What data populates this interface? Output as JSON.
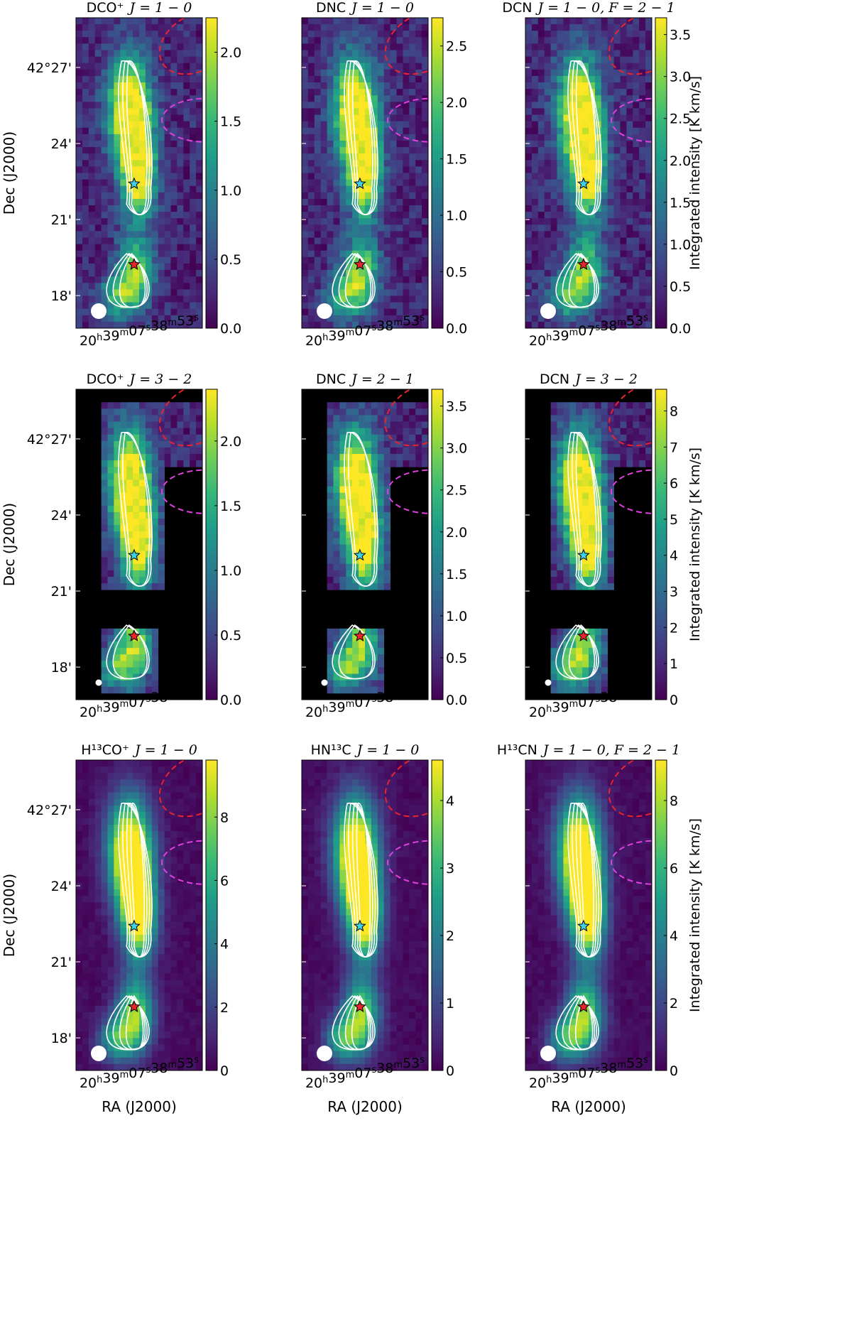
{
  "chart_data": [
    {
      "type": "heatmap",
      "title": "DCO⁺ J=1−0",
      "title_species": "DCO⁺",
      "title_transition": "J = 1 − 0",
      "colorbar_ticks": [
        "0.0",
        "0.5",
        "1.0",
        "1.5",
        "2.0"
      ],
      "colorbar_range": [
        0.0,
        2.25
      ],
      "colorbar_label": "",
      "peak_intensity": 2.2,
      "data_coverage": "full",
      "contours": 3
    },
    {
      "type": "heatmap",
      "title": "DNC J=1−0",
      "title_species": "DNC",
      "title_transition": "J = 1 − 0",
      "colorbar_ticks": [
        "0.0",
        "0.5",
        "1.0",
        "1.5",
        "2.0",
        "2.5"
      ],
      "colorbar_range": [
        0.0,
        2.75
      ],
      "colorbar_label": "",
      "peak_intensity": 2.7,
      "data_coverage": "full",
      "contours": 3
    },
    {
      "type": "heatmap",
      "title": "DCN J=1−0, F=2−1",
      "title_species": "DCN",
      "title_transition": "J = 1 − 0, F = 2 − 1",
      "colorbar_ticks": [
        "0.0",
        "0.5",
        "1.0",
        "1.5",
        "2.0",
        "2.5",
        "3.0",
        "3.5"
      ],
      "colorbar_range": [
        0.0,
        3.7
      ],
      "colorbar_label": "Integrated intensity [K km/s]",
      "peak_intensity": 3.6,
      "data_coverage": "full",
      "contours": 3
    },
    {
      "type": "heatmap",
      "title": "DCO⁺ J=3−2",
      "title_species": "DCO⁺",
      "title_transition": "J = 3 − 2",
      "colorbar_ticks": [
        "0.0",
        "0.5",
        "1.0",
        "1.5",
        "2.0"
      ],
      "colorbar_range": [
        0.0,
        2.4
      ],
      "colorbar_label": "",
      "peak_intensity": 2.3,
      "data_coverage": "partial",
      "contours": 2
    },
    {
      "type": "heatmap",
      "title": "DNC J=2−1",
      "title_species": "DNC",
      "title_transition": "J = 2 − 1",
      "colorbar_ticks": [
        "0.0",
        "0.5",
        "1.0",
        "1.5",
        "2.0",
        "2.5",
        "3.0",
        "3.5"
      ],
      "colorbar_range": [
        0.0,
        3.7
      ],
      "colorbar_label": "",
      "peak_intensity": 3.5,
      "data_coverage": "partial",
      "contours": 2
    },
    {
      "type": "heatmap",
      "title": "DCN J=3−2",
      "title_species": "DCN",
      "title_transition": "J = 3 − 2",
      "colorbar_ticks": [
        "0",
        "1",
        "2",
        "3",
        "4",
        "5",
        "6",
        "7",
        "8"
      ],
      "colorbar_range": [
        0,
        8.6
      ],
      "colorbar_label": "Integrated intensity [K km/s]",
      "peak_intensity": 8.2,
      "data_coverage": "partial",
      "contours": 3
    },
    {
      "type": "heatmap",
      "title": "H¹³CO⁺ J=1−0",
      "title_species": "H¹³CO⁺",
      "title_transition": "J = 1 − 0",
      "colorbar_ticks": [
        "0",
        "2",
        "4",
        "6",
        "8"
      ],
      "colorbar_range": [
        0,
        9.8
      ],
      "colorbar_label": "",
      "peak_intensity": 9.5,
      "data_coverage": "full",
      "contours": 4
    },
    {
      "type": "heatmap",
      "title": "HN¹³C J=1−0",
      "title_species": "HN¹³C",
      "title_transition": "J = 1 − 0",
      "colorbar_ticks": [
        "0",
        "1",
        "2",
        "3",
        "4"
      ],
      "colorbar_range": [
        0,
        4.6
      ],
      "colorbar_label": "",
      "peak_intensity": 4.5,
      "data_coverage": "full",
      "contours": 4
    },
    {
      "type": "heatmap",
      "title": "H¹³CN J=1−0, F=2−1",
      "title_species": "H¹³CN",
      "title_transition": "J = 1 − 0, F = 2 − 1",
      "colorbar_ticks": [
        "0",
        "2",
        "4",
        "6",
        "8"
      ],
      "colorbar_range": [
        0,
        9.2
      ],
      "colorbar_label": "Integrated intensity [K km/s]",
      "peak_intensity": 9.0,
      "data_coverage": "full",
      "contours": 4
    }
  ],
  "axes": {
    "ylabel": "Dec (J2000)",
    "xlabel": "RA (J2000)",
    "yticks": [
      "42°27'",
      "24'",
      "21'",
      "18'"
    ],
    "xtick_text": "20h39m07s38m53s",
    "xtick_parts": [
      {
        "t": "20",
        "sup": false
      },
      {
        "t": "h",
        "sup": true
      },
      {
        "t": "39",
        "sup": false
      },
      {
        "t": "m",
        "sup": true
      },
      {
        "t": "07",
        "sup": false
      },
      {
        "t": "s",
        "sup": true
      },
      {
        "t": "38",
        "sup": false
      },
      {
        "t": "m",
        "sup": true
      },
      {
        "t": "53",
        "sup": false
      },
      {
        "t": "s",
        "sup": true
      }
    ]
  },
  "markers": {
    "cyan_star_color": "#3fd0e8",
    "red_star_color": "#e8242c",
    "beam_color": "#ffffff",
    "contour_color": "#ffffff",
    "ellipse_red_color": "#e8242c",
    "ellipse_magenta_color": "#e040e0"
  },
  "colormap": "viridis",
  "colormap_stops": [
    "#440154",
    "#482878",
    "#3e4a89",
    "#31688e",
    "#26828e",
    "#1f9e89",
    "#35b779",
    "#6ece58",
    "#b5de2b",
    "#fde725"
  ]
}
